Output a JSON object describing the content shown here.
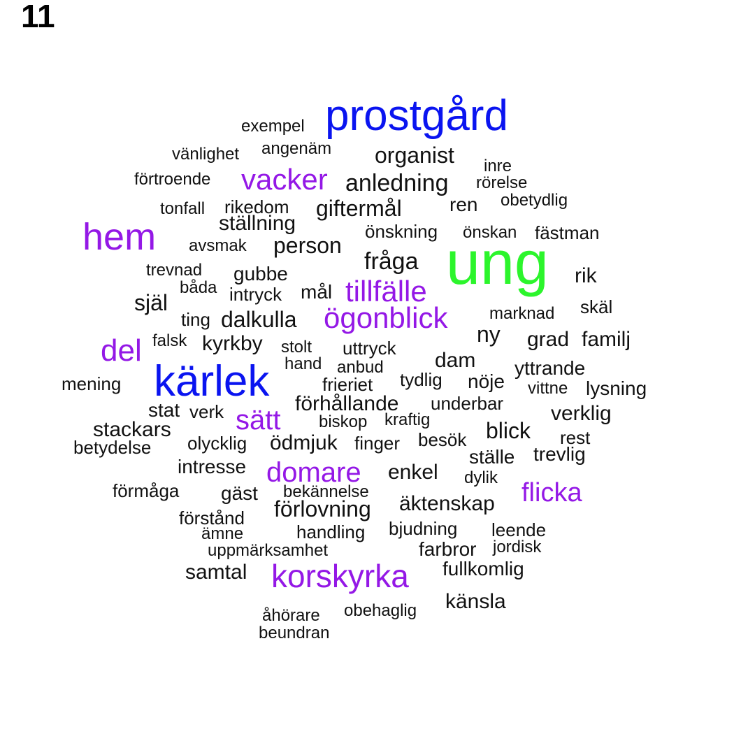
{
  "title": "11",
  "colors": {
    "ung": "#2cf52c",
    "blue": "#0a14f0",
    "purple": "#9418e6",
    "black": "#111111"
  },
  "words": [
    {
      "text": "ung",
      "color": "ung"
    },
    {
      "text": "prostgård",
      "color": "blue"
    },
    {
      "text": "kärlek",
      "color": "blue"
    },
    {
      "text": "hem",
      "color": "purple"
    },
    {
      "text": "vacker",
      "color": "purple"
    },
    {
      "text": "tillfälle",
      "color": "purple"
    },
    {
      "text": "ögonblick",
      "color": "purple"
    },
    {
      "text": "del",
      "color": "purple"
    },
    {
      "text": "sätt",
      "color": "purple"
    },
    {
      "text": "domare",
      "color": "purple"
    },
    {
      "text": "flicka",
      "color": "purple"
    },
    {
      "text": "korskyrka",
      "color": "purple"
    },
    {
      "text": "exempel",
      "color": "black"
    },
    {
      "text": "vänlighet",
      "color": "black"
    },
    {
      "text": "angenäm",
      "color": "black"
    },
    {
      "text": "organist",
      "color": "black"
    },
    {
      "text": "inre",
      "color": "black"
    },
    {
      "text": "förtroende",
      "color": "black"
    },
    {
      "text": "anledning",
      "color": "black"
    },
    {
      "text": "rörelse",
      "color": "black"
    },
    {
      "text": "tonfall",
      "color": "black"
    },
    {
      "text": "rikedom",
      "color": "black"
    },
    {
      "text": "giftermål",
      "color": "black"
    },
    {
      "text": "ren",
      "color": "black"
    },
    {
      "text": "obetydlig",
      "color": "black"
    },
    {
      "text": "ställning",
      "color": "black"
    },
    {
      "text": "önskning",
      "color": "black"
    },
    {
      "text": "önskan",
      "color": "black"
    },
    {
      "text": "fästman",
      "color": "black"
    },
    {
      "text": "avsmak",
      "color": "black"
    },
    {
      "text": "person",
      "color": "black"
    },
    {
      "text": "fråga",
      "color": "black"
    },
    {
      "text": "trevnad",
      "color": "black"
    },
    {
      "text": "gubbe",
      "color": "black"
    },
    {
      "text": "rik",
      "color": "black"
    },
    {
      "text": "båda",
      "color": "black"
    },
    {
      "text": "intryck",
      "color": "black"
    },
    {
      "text": "mål",
      "color": "black"
    },
    {
      "text": "själ",
      "color": "black"
    },
    {
      "text": "skäl",
      "color": "black"
    },
    {
      "text": "ting",
      "color": "black"
    },
    {
      "text": "dalkulla",
      "color": "black"
    },
    {
      "text": "marknad",
      "color": "black"
    },
    {
      "text": "ny",
      "color": "black"
    },
    {
      "text": "falsk",
      "color": "black"
    },
    {
      "text": "kyrkby",
      "color": "black"
    },
    {
      "text": "stolt",
      "color": "black"
    },
    {
      "text": "uttryck",
      "color": "black"
    },
    {
      "text": "grad",
      "color": "black"
    },
    {
      "text": "familj",
      "color": "black"
    },
    {
      "text": "hand",
      "color": "black"
    },
    {
      "text": "anbud",
      "color": "black"
    },
    {
      "text": "dam",
      "color": "black"
    },
    {
      "text": "yttrande",
      "color": "black"
    },
    {
      "text": "mening",
      "color": "black"
    },
    {
      "text": "frieriet",
      "color": "black"
    },
    {
      "text": "tydlig",
      "color": "black"
    },
    {
      "text": "nöje",
      "color": "black"
    },
    {
      "text": "vittne",
      "color": "black"
    },
    {
      "text": "lysning",
      "color": "black"
    },
    {
      "text": "stat",
      "color": "black"
    },
    {
      "text": "verk",
      "color": "black"
    },
    {
      "text": "förhållande",
      "color": "black"
    },
    {
      "text": "underbar",
      "color": "black"
    },
    {
      "text": "verklig",
      "color": "black"
    },
    {
      "text": "stackars",
      "color": "black"
    },
    {
      "text": "biskop",
      "color": "black"
    },
    {
      "text": "kraftig",
      "color": "black"
    },
    {
      "text": "blick",
      "color": "black"
    },
    {
      "text": "betydelse",
      "color": "black"
    },
    {
      "text": "olycklig",
      "color": "black"
    },
    {
      "text": "ödmjuk",
      "color": "black"
    },
    {
      "text": "finger",
      "color": "black"
    },
    {
      "text": "besök",
      "color": "black"
    },
    {
      "text": "rest",
      "color": "black"
    },
    {
      "text": "intresse",
      "color": "black"
    },
    {
      "text": "ställe",
      "color": "black"
    },
    {
      "text": "trevlig",
      "color": "black"
    },
    {
      "text": "enkel",
      "color": "black"
    },
    {
      "text": "förmåga",
      "color": "black"
    },
    {
      "text": "dylik",
      "color": "black"
    },
    {
      "text": "gäst",
      "color": "black"
    },
    {
      "text": "bekännelse",
      "color": "black"
    },
    {
      "text": "äktenskap",
      "color": "black"
    },
    {
      "text": "förstånd",
      "color": "black"
    },
    {
      "text": "förlovning",
      "color": "black"
    },
    {
      "text": "ämne",
      "color": "black"
    },
    {
      "text": "handling",
      "color": "black"
    },
    {
      "text": "bjudning",
      "color": "black"
    },
    {
      "text": "leende",
      "color": "black"
    },
    {
      "text": "uppmärksamhet",
      "color": "black"
    },
    {
      "text": "farbror",
      "color": "black"
    },
    {
      "text": "jordisk",
      "color": "black"
    },
    {
      "text": "samtal",
      "color": "black"
    },
    {
      "text": "fullkomlig",
      "color": "black"
    },
    {
      "text": "känsla",
      "color": "black"
    },
    {
      "text": "åhörare",
      "color": "black"
    },
    {
      "text": "obehaglig",
      "color": "black"
    },
    {
      "text": "beundran",
      "color": "black"
    }
  ]
}
